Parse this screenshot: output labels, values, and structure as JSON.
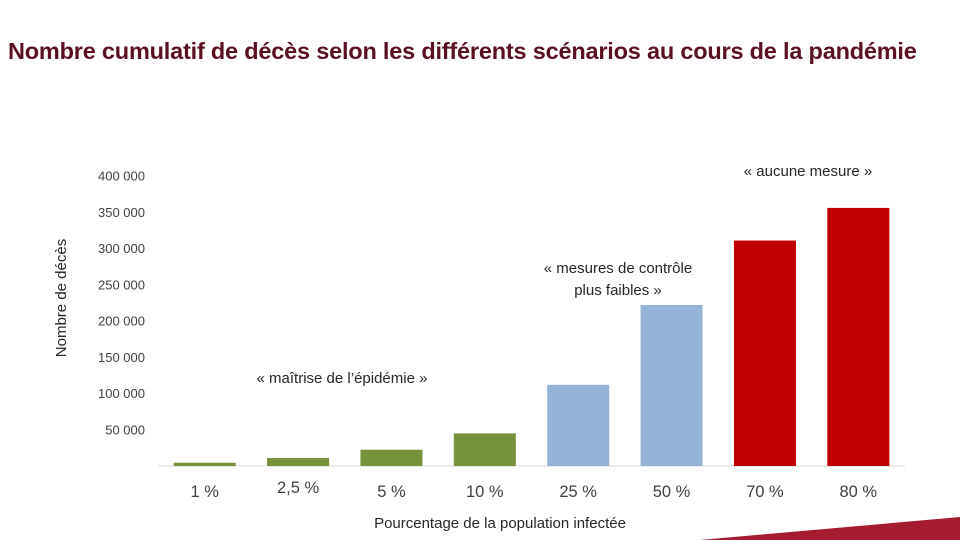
{
  "title": "Nombre cumulatif de décès selon les différents scénarios au cours de la pandémie",
  "chart_data": {
    "type": "bar",
    "categories": [
      "1 %",
      "2,5 %",
      "5 %",
      "10 %",
      "25 %",
      "50 %",
      "70 %",
      "80 %"
    ],
    "values": [
      4500,
      11000,
      22500,
      45000,
      112000,
      222000,
      311000,
      356000
    ],
    "bar_colors": [
      "#76933c",
      "#76933c",
      "#76933c",
      "#76933c",
      "#95b3d7",
      "#95b3d7",
      "#c00000",
      "#c00000"
    ],
    "xlabel": "Pourcentage de la population infectée",
    "ylabel": "Nombre de décès",
    "ylim": [
      0,
      400000
    ],
    "yticks": [
      50000,
      100000,
      150000,
      200000,
      250000,
      300000,
      350000,
      400000
    ],
    "ytick_labels": [
      "50 000",
      "100 000",
      "150 000",
      "200 000",
      "250 000",
      "300 000",
      "350 000",
      "400 000"
    ],
    "grid": false,
    "annotations": [
      {
        "lines": [
          "« maîtrise de l’épidémie »"
        ]
      },
      {
        "lines": [
          "« mesures de contrôle",
          "plus faibles »"
        ]
      },
      {
        "lines": [
          "« aucune mesure »"
        ]
      }
    ]
  },
  "decor_color": "#a51c30"
}
